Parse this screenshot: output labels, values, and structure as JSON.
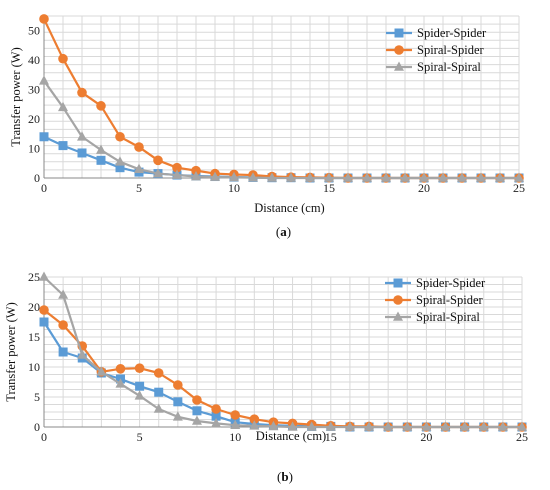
{
  "colors": {
    "spider_spider": "#5b9bd5",
    "spiral_spider": "#ed7d31",
    "spiral_spiral": "#a5a5a5",
    "grid": "#d9d9d9"
  },
  "chart_data": [
    {
      "type": "line",
      "panel_label": {
        "open": "(",
        "letter": "a",
        "close": ")"
      },
      "xlabel": "Distance (cm)",
      "ylabel": "Transfer power (W)",
      "xlim": [
        0,
        25
      ],
      "ylim": [
        0,
        55
      ],
      "xticks": [
        0,
        5,
        10,
        15,
        20,
        25
      ],
      "yticks": [
        0,
        10,
        20,
        30,
        40,
        50
      ],
      "grid": true,
      "legend_position": "top-right",
      "x": [
        0,
        1,
        2,
        3,
        4,
        5,
        6,
        7,
        8,
        9,
        10,
        11,
        12,
        13,
        14,
        15,
        16,
        17,
        18,
        19,
        20,
        21,
        22,
        23,
        24,
        25
      ],
      "series": [
        {
          "name": "Spider-Spider",
          "marker": "square",
          "values": [
            14,
            11,
            8.5,
            6,
            3.5,
            2,
            1.5,
            1,
            0.7,
            0.5,
            0.3,
            0.2,
            0.1,
            0.1,
            0,
            0,
            0,
            0,
            0,
            0,
            0,
            0,
            0,
            0,
            0,
            0
          ]
        },
        {
          "name": "Spiral-Spider",
          "marker": "circle",
          "values": [
            54,
            40.5,
            29,
            24.5,
            14,
            10.5,
            6,
            3.5,
            2.5,
            1.5,
            1.2,
            1,
            0.5,
            0.3,
            0.2,
            0.1,
            0,
            0,
            0,
            0,
            0,
            0,
            0,
            0,
            0,
            0
          ]
        },
        {
          "name": "Spiral-Spiral",
          "marker": "triangle",
          "values": [
            33,
            24,
            14,
            9.5,
            5.5,
            3,
            1.5,
            1,
            0.5,
            0.3,
            0.2,
            0.1,
            0,
            0,
            0,
            0,
            0,
            0,
            0,
            0,
            0,
            0,
            0,
            0,
            0,
            0
          ]
        }
      ]
    },
    {
      "type": "line",
      "panel_label": {
        "open": "(",
        "letter": "b",
        "close": ")"
      },
      "xlabel": "Distance (cm)",
      "ylabel": "Transfer power (W)",
      "xlim": [
        0,
        25
      ],
      "ylim": [
        0,
        25
      ],
      "xticks": [
        0,
        5,
        10,
        15,
        20,
        25
      ],
      "yticks": [
        0,
        5,
        10,
        15,
        20,
        25
      ],
      "grid": true,
      "legend_position": "top-right",
      "x": [
        0,
        1,
        2,
        3,
        4,
        5,
        6,
        7,
        8,
        9,
        10,
        11,
        12,
        13,
        14,
        15,
        16,
        17,
        18,
        19,
        20,
        21,
        22,
        23,
        24,
        25
      ],
      "series": [
        {
          "name": "Spider-Spider",
          "marker": "square",
          "values": [
            17.5,
            12.5,
            11.5,
            9,
            8,
            6.8,
            5.8,
            4.2,
            2.7,
            1.8,
            0.8,
            0.5,
            0.3,
            0.2,
            0.1,
            0.1,
            0,
            0,
            0,
            0,
            0,
            0,
            0,
            0,
            0,
            0
          ]
        },
        {
          "name": "Spiral-Spider",
          "marker": "circle",
          "values": [
            19.5,
            17,
            13.5,
            9.2,
            9.7,
            9.8,
            9,
            7,
            4.5,
            3,
            2,
            1.3,
            0.8,
            0.6,
            0.4,
            0.2,
            0.1,
            0.1,
            0,
            0,
            0,
            0,
            0,
            0,
            0,
            0
          ]
        },
        {
          "name": "Spiral-Spiral",
          "marker": "triangle",
          "values": [
            25,
            22,
            12,
            9.2,
            7.2,
            5.2,
            3,
            1.7,
            1,
            0.6,
            0.3,
            0.2,
            0.1,
            0,
            0,
            0,
            0,
            0,
            0,
            0,
            0,
            0,
            0,
            0,
            0,
            0
          ]
        }
      ]
    }
  ]
}
